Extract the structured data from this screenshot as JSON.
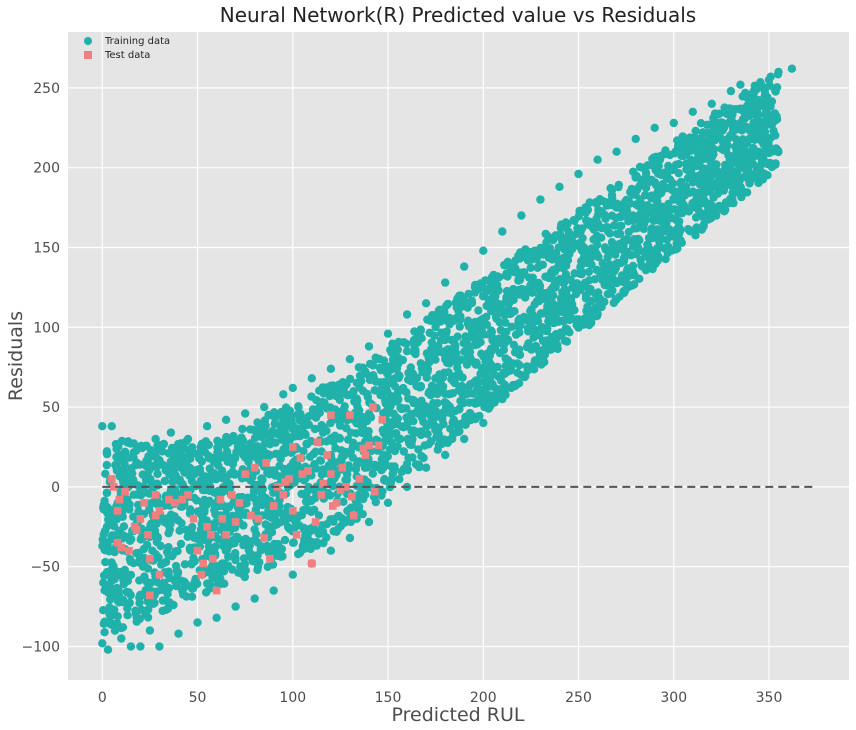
{
  "chart_data": {
    "type": "scatter",
    "title": "Neural Network(R) Predicted value vs Residuals",
    "xlabel": "Predicted RUL",
    "ylabel": "Residuals",
    "xlim": [
      -18,
      392
    ],
    "ylim": [
      -121,
      285
    ],
    "xticks": [
      0,
      50,
      100,
      150,
      200,
      250,
      300,
      350
    ],
    "yticks": [
      -100,
      -50,
      0,
      50,
      100,
      150,
      200,
      250
    ],
    "grid": true,
    "legend_position": "top-left",
    "reference_line": {
      "y": 0,
      "x_range": [
        0,
        373
      ],
      "style": "dashed",
      "color": "#555555"
    },
    "background": "#e5e5e5",
    "series": [
      {
        "name": "Training data",
        "marker": "circle",
        "color": "#20b2aa",
        "sampled_points": [
          [
            0,
            38
          ],
          [
            5,
            38
          ],
          [
            12,
            22
          ],
          [
            20,
            25
          ],
          [
            28,
            30
          ],
          [
            36,
            34
          ],
          [
            45,
            30
          ],
          [
            55,
            38
          ],
          [
            65,
            42
          ],
          [
            75,
            46
          ],
          [
            85,
            50
          ],
          [
            95,
            58
          ],
          [
            100,
            62
          ],
          [
            110,
            68
          ],
          [
            120,
            74
          ],
          [
            130,
            80
          ],
          [
            140,
            88
          ],
          [
            150,
            96
          ],
          [
            160,
            108
          ],
          [
            170,
            115
          ],
          [
            180,
            128
          ],
          [
            190,
            138
          ],
          [
            200,
            148
          ],
          [
            210,
            160
          ],
          [
            220,
            170
          ],
          [
            230,
            180
          ],
          [
            240,
            188
          ],
          [
            250,
            196
          ],
          [
            260,
            205
          ],
          [
            270,
            210
          ],
          [
            280,
            218
          ],
          [
            290,
            225
          ],
          [
            300,
            228
          ],
          [
            310,
            235
          ],
          [
            320,
            240
          ],
          [
            330,
            248
          ],
          [
            335,
            252
          ],
          [
            342,
            248
          ],
          [
            350,
            255
          ],
          [
            355,
            260
          ],
          [
            362,
            262
          ],
          [
            0,
            -98
          ],
          [
            3,
            -102
          ],
          [
            10,
            -95
          ],
          [
            15,
            -100
          ],
          [
            20,
            -100
          ],
          [
            25,
            -90
          ],
          [
            30,
            -100
          ],
          [
            40,
            -92
          ],
          [
            50,
            -85
          ],
          [
            60,
            -82
          ],
          [
            70,
            -75
          ],
          [
            80,
            -70
          ],
          [
            90,
            -65
          ],
          [
            100,
            -55
          ],
          [
            110,
            -48
          ],
          [
            120,
            -40
          ],
          [
            130,
            -32
          ],
          [
            140,
            -22
          ],
          [
            150,
            -10
          ],
          [
            160,
            0
          ],
          [
            170,
            12
          ],
          [
            180,
            20
          ],
          [
            190,
            30
          ],
          [
            200,
            40
          ],
          [
            210,
            55
          ],
          [
            220,
            70
          ],
          [
            230,
            80
          ],
          [
            240,
            95
          ],
          [
            250,
            105
          ],
          [
            260,
            120
          ],
          [
            270,
            140
          ],
          [
            280,
            155
          ],
          [
            290,
            175
          ],
          [
            300,
            180
          ],
          [
            310,
            185
          ],
          [
            320,
            190
          ],
          [
            330,
            198
          ],
          [
            340,
            205
          ],
          [
            345,
            200
          ],
          [
            30,
            -20
          ],
          [
            60,
            -10
          ],
          [
            90,
            0
          ],
          [
            120,
            20
          ],
          [
            150,
            50
          ],
          [
            180,
            80
          ],
          [
            210,
            110
          ],
          [
            240,
            140
          ],
          [
            270,
            175
          ],
          [
            300,
            200
          ]
        ]
      },
      {
        "name": "Test data",
        "marker": "square",
        "color": "#f08080",
        "points": [
          [
            5,
            5
          ],
          [
            8,
            -15
          ],
          [
            8,
            -35
          ],
          [
            10,
            -38
          ],
          [
            14,
            -40
          ],
          [
            17,
            -25
          ],
          [
            20,
            -20
          ],
          [
            22,
            -10
          ],
          [
            24,
            -30
          ],
          [
            25,
            -45
          ],
          [
            25,
            -68
          ],
          [
            28,
            -5
          ],
          [
            30,
            -15
          ],
          [
            30,
            -55
          ],
          [
            38,
            -10
          ],
          [
            42,
            -8
          ],
          [
            45,
            -5
          ],
          [
            50,
            -40
          ],
          [
            52,
            -55
          ],
          [
            55,
            -25
          ],
          [
            58,
            -45
          ],
          [
            60,
            -65
          ],
          [
            62,
            -8
          ],
          [
            65,
            -30
          ],
          [
            70,
            -22
          ],
          [
            72,
            -10
          ],
          [
            75,
            8
          ],
          [
            80,
            12
          ],
          [
            82,
            -20
          ],
          [
            85,
            -32
          ],
          [
            88,
            -45
          ],
          [
            90,
            -12
          ],
          [
            92,
            0
          ],
          [
            95,
            -5
          ],
          [
            98,
            5
          ],
          [
            100,
            -15
          ],
          [
            100,
            25
          ],
          [
            102,
            -30
          ],
          [
            105,
            8
          ],
          [
            108,
            10
          ],
          [
            110,
            -48
          ],
          [
            112,
            -22
          ],
          [
            115,
            -5
          ],
          [
            118,
            20
          ],
          [
            120,
            45
          ],
          [
            120,
            8
          ],
          [
            123,
            -10
          ],
          [
            125,
            -2
          ],
          [
            128,
            0
          ],
          [
            130,
            45
          ],
          [
            132,
            -18
          ],
          [
            135,
            5
          ],
          [
            138,
            20
          ],
          [
            140,
            26
          ],
          [
            142,
            50
          ],
          [
            143,
            -3
          ],
          [
            145,
            26
          ],
          [
            147,
            42
          ],
          [
            6,
            0
          ],
          [
            9,
            -8
          ],
          [
            12,
            -3
          ],
          [
            18,
            -27
          ],
          [
            28,
            -18
          ],
          [
            35,
            -8
          ],
          [
            48,
            -20
          ],
          [
            53,
            -48
          ],
          [
            57,
            -30
          ],
          [
            63,
            -20
          ],
          [
            68,
            -5
          ],
          [
            78,
            -18
          ],
          [
            86,
            15
          ],
          [
            96,
            3
          ],
          [
            104,
            18
          ],
          [
            113,
            28
          ],
          [
            116,
            2
          ],
          [
            121,
            -12
          ],
          [
            126,
            12
          ],
          [
            131,
            -6
          ],
          [
            137,
            24
          ]
        ]
      }
    ]
  }
}
